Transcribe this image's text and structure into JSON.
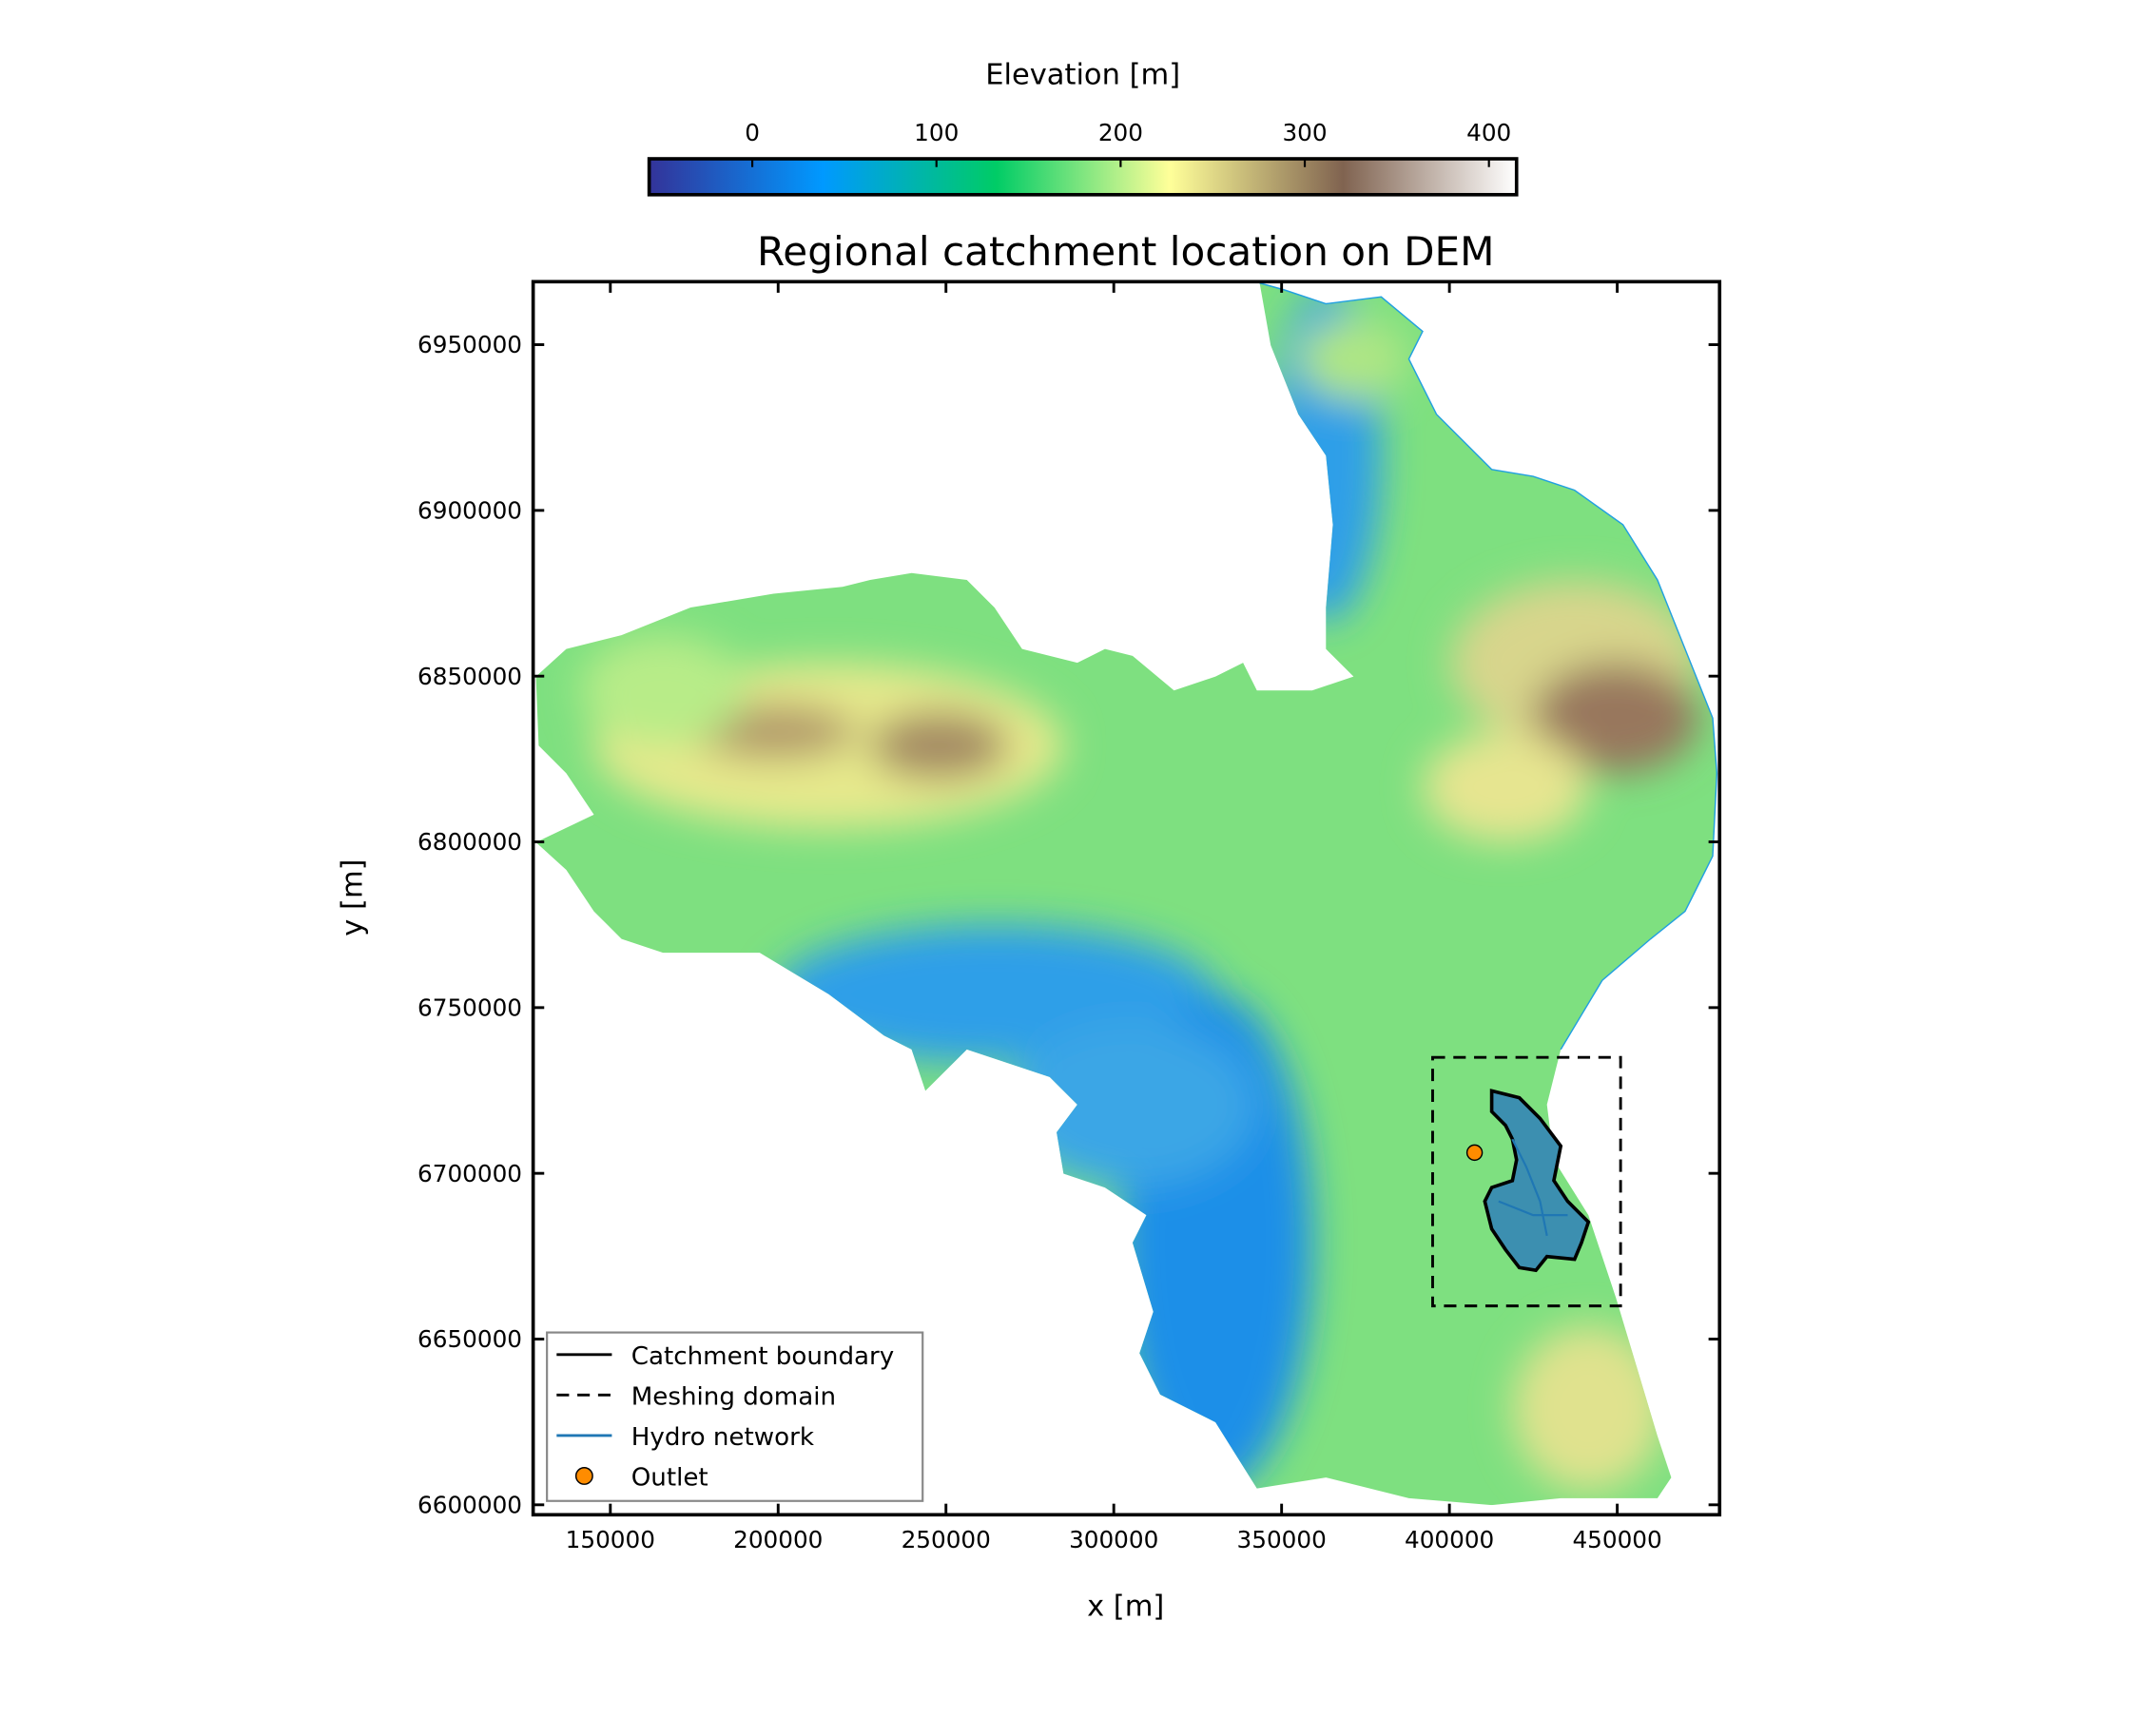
{
  "chart_data": {
    "type": "map",
    "title": "Regional catchment location on DEM",
    "xlabel": "x [m]",
    "ylabel": "y [m]",
    "xlim": [
      127000,
      480500
    ],
    "ylim": [
      6597000,
      6969000
    ],
    "xticks": [
      150000,
      200000,
      250000,
      300000,
      350000,
      400000,
      450000
    ],
    "yticks": [
      6600000,
      6650000,
      6700000,
      6750000,
      6800000,
      6850000,
      6900000,
      6950000
    ],
    "colorbar": {
      "label": "Elevation [m]",
      "clim": [
        -56,
        415
      ],
      "ticks": [
        0,
        100,
        200,
        300,
        400
      ],
      "colors": [
        "#333399",
        "#0099ff",
        "#00cc66",
        "#ffff99",
        "#806350",
        "#ffffff"
      ]
    },
    "legend": {
      "corner": "lower left",
      "entries": [
        {
          "name": "Catchment boundary",
          "color": "#000000",
          "style": "solid"
        },
        {
          "name": "Meshing domain",
          "color": "#000000",
          "style": "dashed"
        },
        {
          "name": "Hydro network",
          "color": "#1f77b4",
          "style": "solid"
        },
        {
          "name": "Outlet",
          "color": "#ff8c00",
          "style": "marker"
        }
      ]
    },
    "meshing_domain": {
      "x": [
        395000,
        451000
      ],
      "y": [
        6660000,
        6735000
      ]
    },
    "outlet": {
      "x": 407500,
      "y": 6706250,
      "color": "#ff8c00"
    }
  }
}
